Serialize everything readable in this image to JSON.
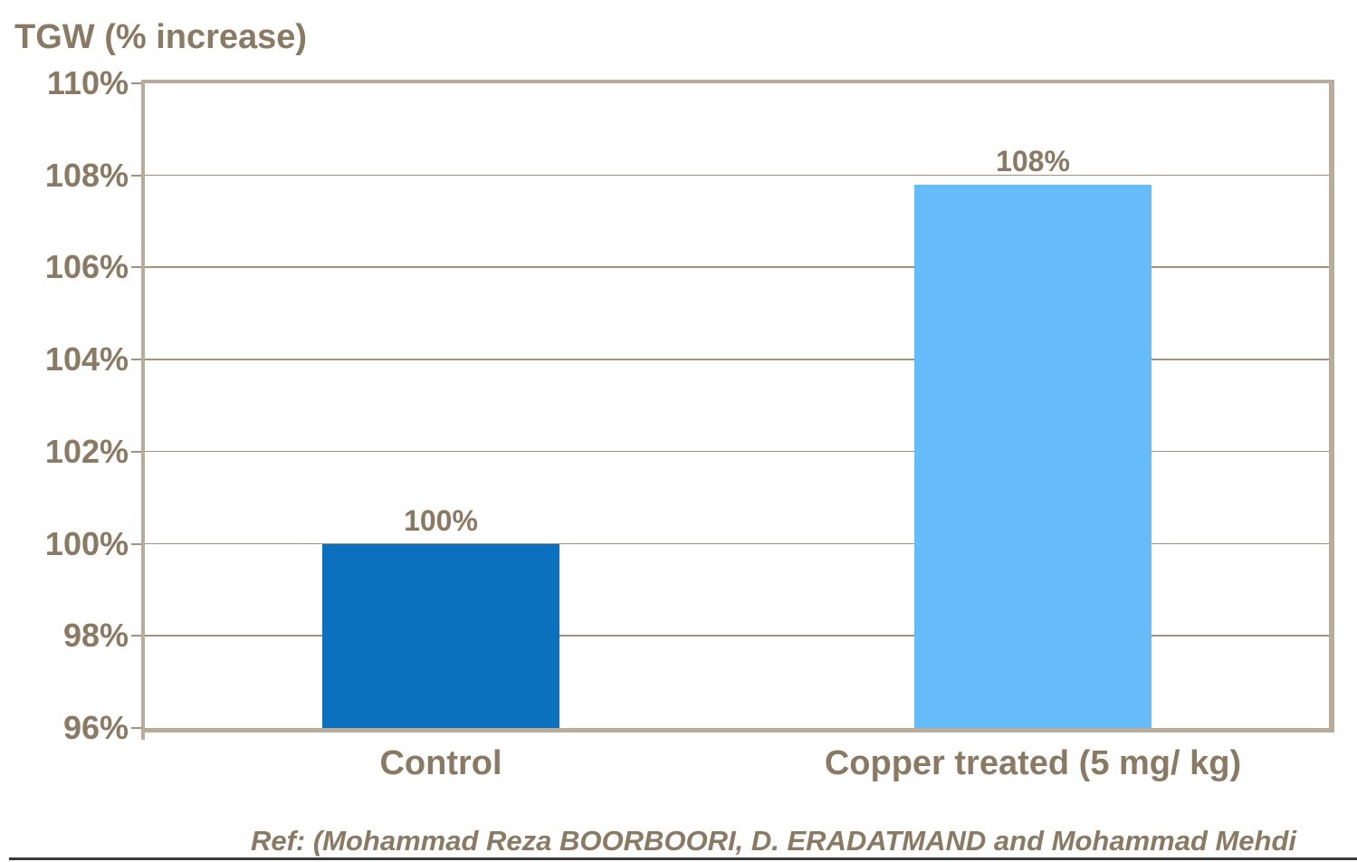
{
  "chart_data": {
    "type": "bar",
    "title": "TGW (% increase)",
    "categories": [
      "Control",
      "Copper treated (5 mg/ kg)"
    ],
    "values": [
      100,
      107.8
    ],
    "data_labels": [
      "100%",
      "108%"
    ],
    "bar_colors": [
      "#0b70be",
      "#66bcf8"
    ],
    "ylim": [
      96,
      110
    ],
    "ytick_step": 2,
    "ytick_labels": [
      "96%",
      "98%",
      "100%",
      "102%",
      "104%",
      "106%",
      "108%",
      "110%"
    ],
    "grid": true,
    "legend": "none",
    "xlabel": "",
    "ylabel": "TGW (% increase)"
  },
  "footer": {
    "reference": "Ref: (Mohammad Reza BOORBOORI, D. ERADATMAND and Mohammad Mehdi"
  },
  "colors": {
    "text_brown": "#8a7963",
    "axis_tan": "#b8ac9d",
    "gridline": "#a3917c",
    "bottom_rule": "#3a3a3a",
    "background": "#ffffff"
  }
}
